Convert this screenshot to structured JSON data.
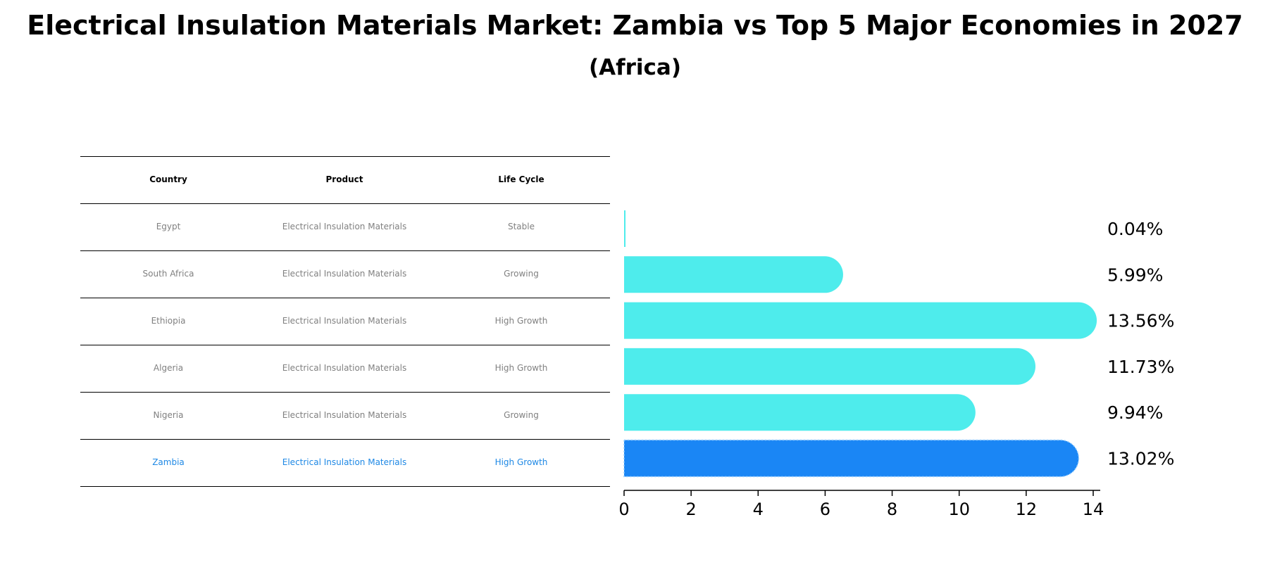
{
  "title": "Electrical Insulation Materials Market: Zambia vs Top 5 Major Economies in 2027",
  "subtitle": "(Africa)",
  "table": {
    "headers": [
      "Country",
      "Product",
      "Life Cycle"
    ],
    "rows": [
      [
        "Egypt",
        "Electrical Insulation Materials",
        "Stable"
      ],
      [
        "South Africa",
        "Electrical Insulation Materials",
        "Growing"
      ],
      [
        "Ethiopia",
        "Electrical Insulation Materials",
        "High Growth"
      ],
      [
        "Algeria",
        "Electrical Insulation Materials",
        "High Growth"
      ],
      [
        "Nigeria",
        "Electrical Insulation Materials",
        "Growing"
      ],
      [
        "Zambia",
        "Electrical Insulation Materials",
        "High Growth"
      ]
    ],
    "highlight_row": 5
  },
  "chart_data": {
    "type": "bar",
    "orientation": "horizontal",
    "categories": [
      "Egypt",
      "South Africa",
      "Ethiopia",
      "Algeria",
      "Nigeria",
      "Zambia"
    ],
    "values": [
      0.04,
      5.99,
      13.56,
      11.73,
      9.94,
      13.02
    ],
    "value_labels": [
      "0.04%",
      "5.99%",
      "13.56%",
      "11.73%",
      "9.94%",
      "13.02%"
    ],
    "xlim": [
      0,
      14
    ],
    "xticks": [
      0,
      2,
      4,
      6,
      8,
      10,
      12,
      14
    ],
    "grid": false,
    "colors": {
      "default": "#4eecec",
      "highlight": "#1a86f5"
    },
    "highlight_category": "Zambia"
  }
}
